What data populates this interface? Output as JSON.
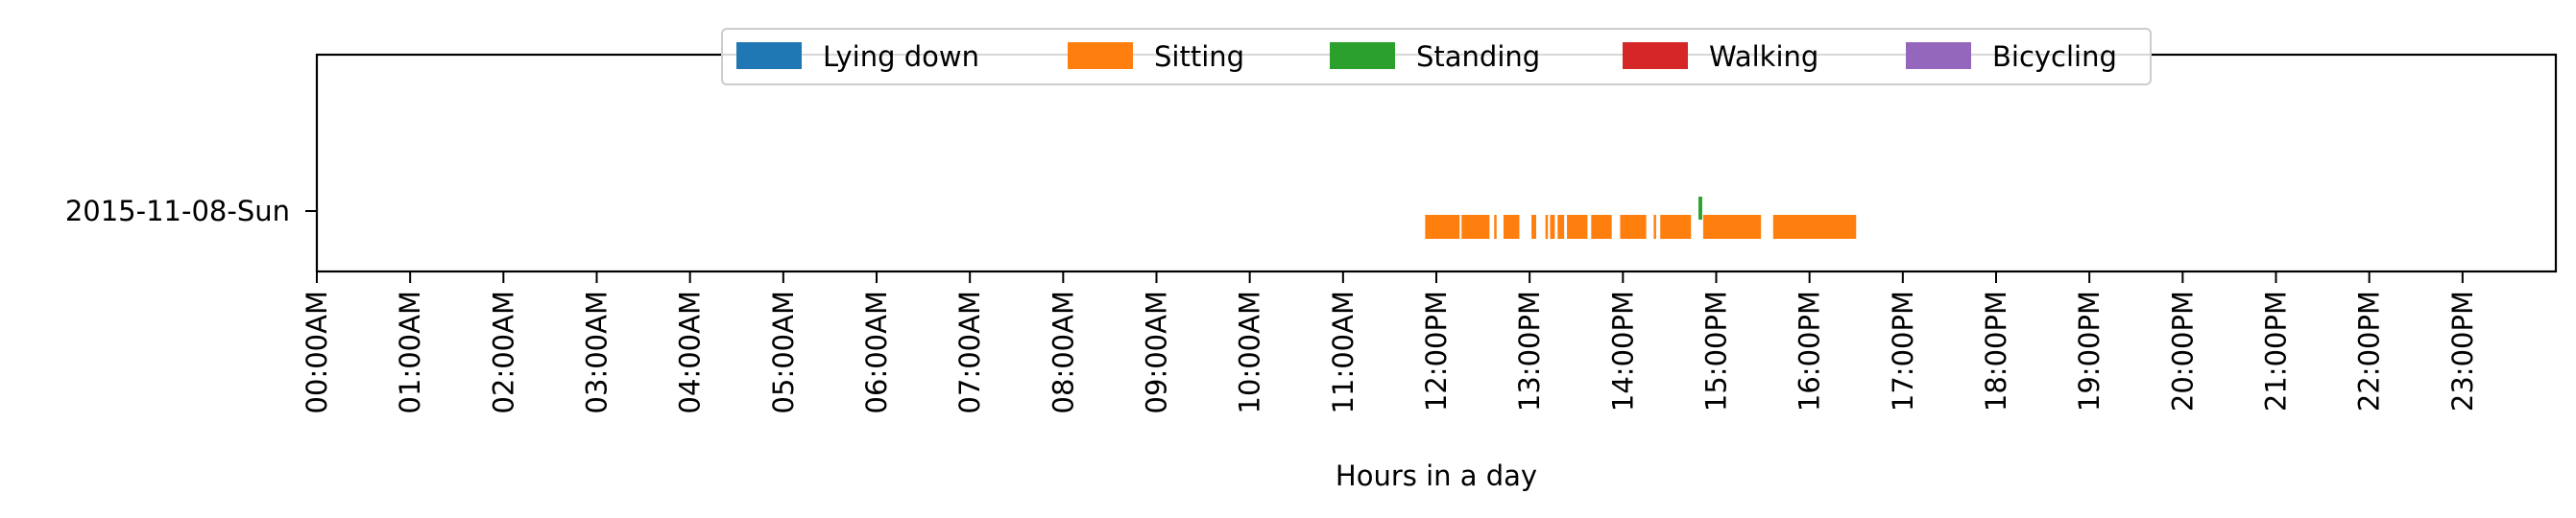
{
  "chart_data": {
    "type": "timeline",
    "xlabel": "Hours in a day",
    "ylabel": "",
    "xlim": [
      0,
      24
    ],
    "grid": false,
    "legend_placement": "top-center",
    "x_ticks": [
      "00:00AM",
      "01:00AM",
      "02:00AM",
      "03:00AM",
      "04:00AM",
      "05:00AM",
      "06:00AM",
      "07:00AM",
      "08:00AM",
      "09:00AM",
      "10:00AM",
      "11:00AM",
      "12:00PM",
      "13:00PM",
      "14:00PM",
      "15:00PM",
      "16:00PM",
      "17:00PM",
      "18:00PM",
      "19:00PM",
      "20:00PM",
      "21:00PM",
      "22:00PM",
      "23:00PM"
    ],
    "categories": [
      "2015-11-08-Sun"
    ],
    "legend": [
      {
        "name": "Lying down",
        "color": "#1f77b4"
      },
      {
        "name": "Sitting",
        "color": "#ff7f0e"
      },
      {
        "name": "Standing",
        "color": "#2ca02c"
      },
      {
        "name": "Walking",
        "color": "#d62728"
      },
      {
        "name": "Bicycling",
        "color": "#9467bd"
      }
    ],
    "series": [
      {
        "name": "Sitting",
        "color": "#ff7f0e",
        "day": "2015-11-08-Sun",
        "intervals": [
          [
            11.88,
            12.25
          ],
          [
            12.27,
            12.57
          ],
          [
            12.62,
            12.64
          ],
          [
            12.72,
            12.89
          ],
          [
            13.02,
            13.07
          ],
          [
            13.17,
            13.19
          ],
          [
            13.22,
            13.27
          ],
          [
            13.3,
            13.37
          ],
          [
            13.4,
            13.62
          ],
          [
            13.66,
            13.88
          ],
          [
            13.97,
            14.25
          ],
          [
            14.33,
            14.35
          ],
          [
            14.4,
            14.73
          ],
          [
            14.86,
            15.48
          ],
          [
            15.61,
            16.5
          ]
        ]
      },
      {
        "name": "Standing",
        "color": "#2ca02c",
        "day": "2015-11-08-Sun",
        "intervals": [
          [
            14.81,
            14.85
          ]
        ]
      }
    ]
  }
}
